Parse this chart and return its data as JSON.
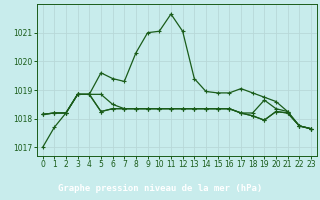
{
  "title": "Graphe pression niveau de la mer (hPa)",
  "bg_color": "#c8ecec",
  "grid_color": "#aadddd",
  "line_color": "#1a5c1a",
  "label_bg": "#2d6e2d",
  "label_fg": "#ffffff",
  "xlim": [
    -0.5,
    23.5
  ],
  "ylim": [
    1016.7,
    1022.0
  ],
  "xticks": [
    0,
    1,
    2,
    3,
    4,
    5,
    6,
    7,
    8,
    9,
    10,
    11,
    12,
    13,
    14,
    15,
    16,
    17,
    18,
    19,
    20,
    21,
    22,
    23
  ],
  "yticks": [
    1017,
    1018,
    1019,
    1020,
    1021
  ],
  "series": [
    [
      1017.0,
      1017.7,
      1018.2,
      1018.85,
      1018.85,
      1019.6,
      1019.4,
      1019.3,
      1020.3,
      1021.0,
      1021.05,
      1021.65,
      1021.05,
      1019.4,
      1018.95,
      1018.9,
      1018.9,
      1019.05,
      1018.9,
      1018.75,
      1018.6,
      1018.25,
      1017.75,
      1017.65
    ],
    [
      1018.15,
      1018.2,
      1018.2,
      1018.85,
      1018.85,
      1018.85,
      1018.5,
      1018.35,
      1018.35,
      1018.35,
      1018.35,
      1018.35,
      1018.35,
      1018.35,
      1018.35,
      1018.35,
      1018.35,
      1018.2,
      1018.1,
      1017.95,
      1018.25,
      1018.2,
      1017.75,
      1017.65
    ],
    [
      1018.15,
      1018.2,
      1018.2,
      1018.85,
      1018.85,
      1018.25,
      1018.35,
      1018.35,
      1018.35,
      1018.35,
      1018.35,
      1018.35,
      1018.35,
      1018.35,
      1018.35,
      1018.35,
      1018.35,
      1018.2,
      1018.1,
      1017.95,
      1018.25,
      1018.2,
      1017.75,
      1017.65
    ],
    [
      1018.15,
      1018.2,
      1018.2,
      1018.85,
      1018.85,
      1018.25,
      1018.35,
      1018.35,
      1018.35,
      1018.35,
      1018.35,
      1018.35,
      1018.35,
      1018.35,
      1018.35,
      1018.35,
      1018.35,
      1018.2,
      1018.2,
      1018.65,
      1018.35,
      1018.25,
      1017.75,
      1017.65
    ]
  ]
}
